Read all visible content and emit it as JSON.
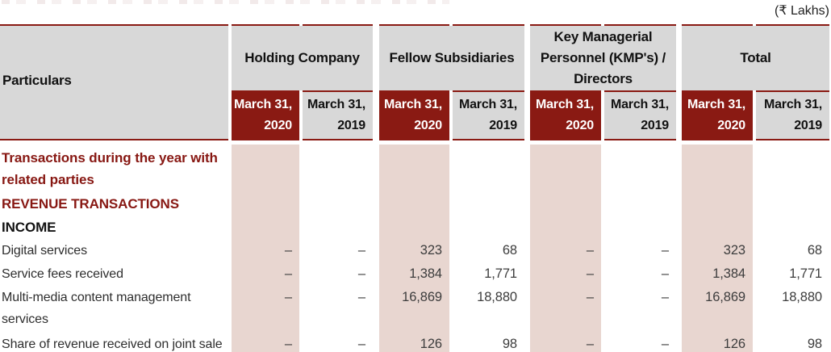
{
  "units_note": "(₹ Lakhs)",
  "colors": {
    "maroon": "#8a1a13",
    "maroon_text": "#871712",
    "header_gray": "#d8d8d8",
    "pink_column": "#e8d6d0"
  },
  "table": {
    "particulars_label": "Particulars",
    "groups": [
      {
        "id": "holding-company",
        "label": "Holding Company"
      },
      {
        "id": "fellow-subsidiaries",
        "label": "Fellow Subsidiaries"
      },
      {
        "id": "kmp-directors",
        "label": "Key Managerial Personnel (KMP's) / Directors"
      },
      {
        "id": "total",
        "label": "Total"
      }
    ],
    "period_headers": [
      {
        "id": "march-31-2020",
        "line1": "March 31,",
        "line2": "2020",
        "current": true
      },
      {
        "id": "march-31-2019",
        "line1": "March 31,",
        "line2": "2019",
        "current": false
      }
    ],
    "rows": [
      {
        "label": "Transactions during the year with related parties",
        "style": "maroon-bold",
        "tall": true,
        "values": [
          "",
          "",
          "",
          "",
          "",
          "",
          "",
          ""
        ]
      },
      {
        "label": "REVENUE TRANSACTIONS",
        "style": "maroon-bold",
        "tall": false,
        "values": [
          "",
          "",
          "",
          "",
          "",
          "",
          "",
          ""
        ]
      },
      {
        "label": "INCOME",
        "style": "black-bold",
        "tall": false,
        "values": [
          "",
          "",
          "",
          "",
          "",
          "",
          "",
          ""
        ]
      },
      {
        "label": "Digital services",
        "style": "normal",
        "tall": false,
        "values": [
          "–",
          "–",
          "323",
          "68",
          "–",
          "–",
          "323",
          "68"
        ]
      },
      {
        "label": "Service fees received",
        "style": "normal",
        "tall": false,
        "values": [
          "–",
          "–",
          "1,384",
          "1,771",
          "–",
          "–",
          "1,384",
          "1,771"
        ]
      },
      {
        "label": "Multi-media content management services",
        "style": "normal",
        "tall": true,
        "values": [
          "–",
          "–",
          "16,869",
          "18,880",
          "–",
          "–",
          "16,869",
          "18,880"
        ]
      },
      {
        "label": "Share of revenue received on joint sale",
        "style": "normal",
        "tall": false,
        "values": [
          "–",
          "–",
          "126",
          "98",
          "–",
          "–",
          "126",
          "98"
        ]
      }
    ]
  }
}
